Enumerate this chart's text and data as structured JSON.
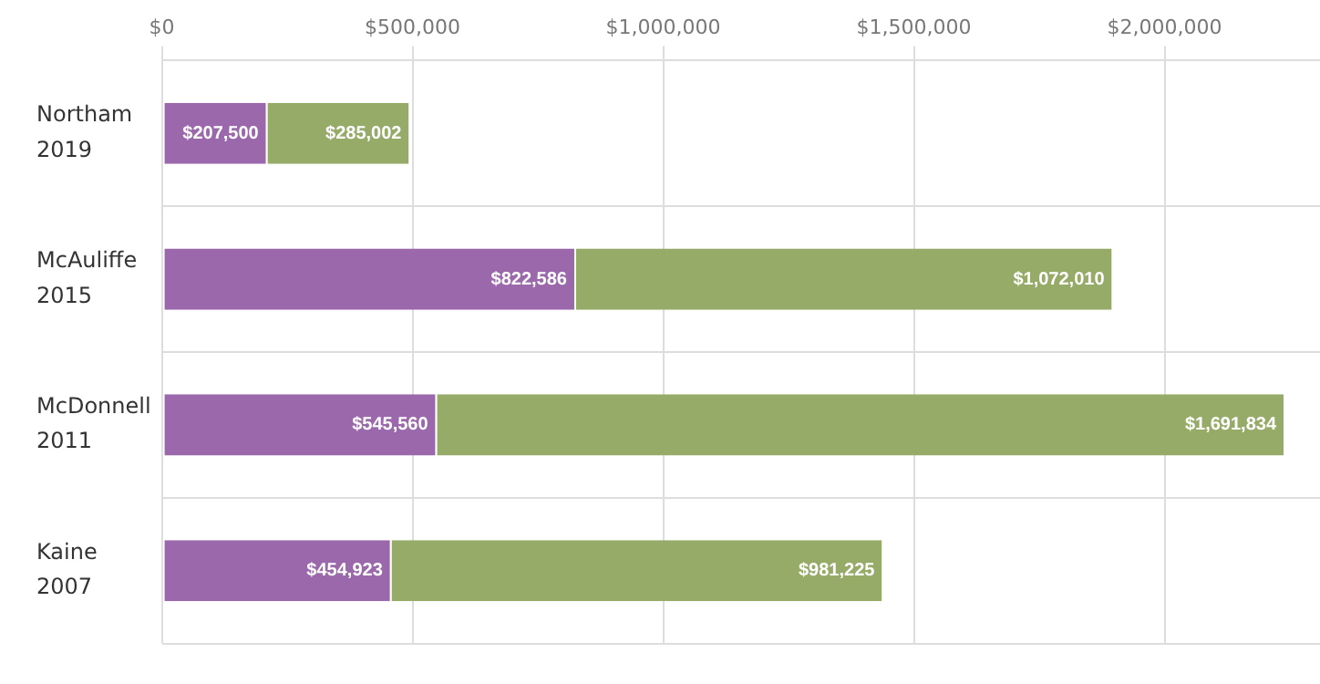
{
  "chart_data": {
    "type": "bar",
    "orientation": "horizontal",
    "stacked": true,
    "categories": [
      "Northam\n2019",
      "McAuliffe\n2015",
      "McDonnell\n2011",
      "Kaine\n2007"
    ],
    "series": [
      {
        "color": "#9b69ab",
        "values": [
          207500,
          822586,
          545560,
          454923
        ],
        "value_labels": [
          "$207,500",
          "$822,586",
          "$545,560",
          "$454,923"
        ]
      },
      {
        "color": "#97ab69",
        "values": [
          285002,
          1072010,
          1691834,
          981225
        ],
        "value_labels": [
          "$285,002",
          "$1,072,010",
          "$1,691,834",
          "$981,225"
        ]
      }
    ],
    "xlim": [
      0,
      2310000
    ],
    "xticks": [
      {
        "value": 0,
        "label": "$0"
      },
      {
        "value": 500000,
        "label": "$500,000"
      },
      {
        "value": 1000000,
        "label": "$1,000,000"
      },
      {
        "value": 1500000,
        "label": "$1,500,000"
      },
      {
        "value": 2000000,
        "label": "$2,000,000"
      }
    ],
    "grid": true,
    "legend": false
  }
}
